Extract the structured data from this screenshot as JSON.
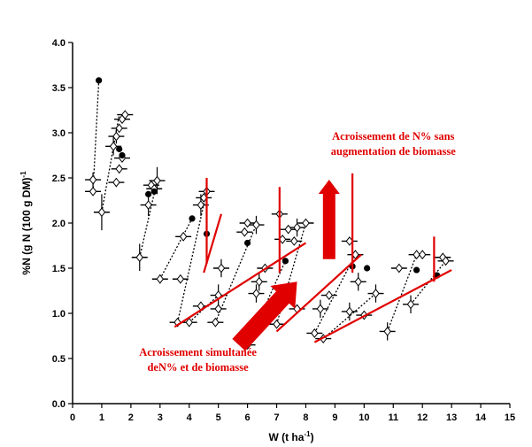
{
  "chart_data": {
    "type": "scatter",
    "title": "",
    "xlabel": "W (t ha",
    "xlabel_sup": "-1",
    "xlabel_end": ")",
    "ylabel": "%N (g N (100 g DM)",
    "ylabel_sup": "-1",
    "xlim": [
      0,
      15
    ],
    "ylim": [
      0.0,
      4.0
    ],
    "x_ticks": [
      0,
      1,
      2,
      3,
      4,
      5,
      6,
      7,
      8,
      9,
      10,
      11,
      12,
      13,
      14,
      15
    ],
    "y_ticks": [
      "0.0",
      "0.5",
      "1.0",
      "1.5",
      "2.0",
      "2.5",
      "3.0",
      "3.5",
      "4.0"
    ],
    "grid": false,
    "series": [
      {
        "marker": "open-diamond",
        "points": [
          {
            "x": 0.7,
            "y": 2.48,
            "yerr": 0.08
          },
          {
            "x": 0.7,
            "y": 2.35,
            "yerr": 0
          },
          {
            "x": 1.0,
            "y": 2.12,
            "yerr": 0.2
          },
          {
            "x": 1.4,
            "y": 2.85,
            "yerr": 0.1
          },
          {
            "x": 1.5,
            "y": 2.96,
            "yerr": 0.08
          },
          {
            "x": 1.6,
            "y": 3.05,
            "yerr": 0
          },
          {
            "x": 1.7,
            "y": 3.15,
            "yerr": 0
          },
          {
            "x": 1.5,
            "y": 2.45,
            "yerr": 0.05
          },
          {
            "x": 1.6,
            "y": 2.6,
            "yerr": 0
          },
          {
            "x": 1.7,
            "y": 2.72,
            "yerr": 0
          },
          {
            "x": 1.8,
            "y": 3.2,
            "yerr": 0
          },
          {
            "x": 2.3,
            "y": 1.62,
            "yerr": 0.15
          },
          {
            "x": 2.6,
            "y": 2.2,
            "yerr": 0.12
          },
          {
            "x": 2.7,
            "y": 2.42,
            "yerr": 0
          },
          {
            "x": 2.8,
            "y": 2.38,
            "yerr": 0
          },
          {
            "x": 2.9,
            "y": 2.47,
            "yerr": 0.15
          },
          {
            "x": 3.0,
            "y": 1.38,
            "yerr": 0.05
          },
          {
            "x": 3.6,
            "y": 0.9,
            "yerr": 0
          },
          {
            "x": 3.7,
            "y": 1.38,
            "yerr": 0
          },
          {
            "x": 3.8,
            "y": 1.85,
            "yerr": 0
          },
          {
            "x": 4.4,
            "y": 2.2,
            "yerr": 0.12
          },
          {
            "x": 4.5,
            "y": 2.28,
            "yerr": 0
          },
          {
            "x": 4.6,
            "y": 2.35,
            "yerr": 0.1
          },
          {
            "x": 4.0,
            "y": 0.9,
            "yerr": 0
          },
          {
            "x": 4.4,
            "y": 1.08,
            "yerr": 0
          },
          {
            "x": 4.9,
            "y": 0.9,
            "yerr": 0
          },
          {
            "x": 5.0,
            "y": 1.2,
            "yerr": 0.12
          },
          {
            "x": 5.0,
            "y": 1.05,
            "yerr": 0
          },
          {
            "x": 5.1,
            "y": 1.5,
            "yerr": 0.1
          },
          {
            "x": 5.9,
            "y": 1.9,
            "yerr": 0
          },
          {
            "x": 6.0,
            "y": 2.0,
            "yerr": 0
          },
          {
            "x": 6.3,
            "y": 1.98,
            "yerr": 0.1
          },
          {
            "x": 6.3,
            "y": 1.22,
            "yerr": 0.1
          },
          {
            "x": 6.4,
            "y": 1.35,
            "yerr": 0.1
          },
          {
            "x": 6.6,
            "y": 1.5,
            "yerr": 0
          },
          {
            "x": 7.1,
            "y": 2.1,
            "yerr": 0.1
          },
          {
            "x": 7.2,
            "y": 1.82,
            "yerr": 0
          },
          {
            "x": 7.4,
            "y": 1.93,
            "yerr": 0
          },
          {
            "x": 7.6,
            "y": 1.8,
            "yerr": 0
          },
          {
            "x": 7.7,
            "y": 1.95,
            "yerr": 0.1
          },
          {
            "x": 8.0,
            "y": 2.0,
            "yerr": 0
          },
          {
            "x": 6.0,
            "y": 0.65,
            "yerr": 0
          },
          {
            "x": 7.0,
            "y": 0.88,
            "yerr": 0
          },
          {
            "x": 7.7,
            "y": 1.05,
            "yerr": 0
          },
          {
            "x": 8.3,
            "y": 0.78,
            "yerr": 0
          },
          {
            "x": 8.5,
            "y": 1.05,
            "yerr": 0.1
          },
          {
            "x": 8.6,
            "y": 0.72,
            "yerr": 0
          },
          {
            "x": 8.8,
            "y": 1.2,
            "yerr": 0
          },
          {
            "x": 9.5,
            "y": 1.8,
            "yerr": 0
          },
          {
            "x": 9.7,
            "y": 1.65,
            "yerr": 0
          },
          {
            "x": 9.5,
            "y": 1.02,
            "yerr": 0.1
          },
          {
            "x": 9.8,
            "y": 1.35,
            "yerr": 0.1
          },
          {
            "x": 10.0,
            "y": 0.98,
            "yerr": 0
          },
          {
            "x": 10.4,
            "y": 1.22,
            "yerr": 0.1
          },
          {
            "x": 10.8,
            "y": 0.8,
            "yerr": 0.1
          },
          {
            "x": 11.2,
            "y": 1.5,
            "yerr": 0
          },
          {
            "x": 11.6,
            "y": 1.1,
            "yerr": 0.1
          },
          {
            "x": 11.8,
            "y": 1.65,
            "yerr": 0
          },
          {
            "x": 12.0,
            "y": 1.65,
            "yerr": 0
          },
          {
            "x": 12.7,
            "y": 1.62,
            "yerr": 0
          },
          {
            "x": 12.8,
            "y": 1.58,
            "yerr": 0
          }
        ]
      },
      {
        "marker": "filled-circle",
        "points": [
          {
            "x": 0.9,
            "y": 3.58
          },
          {
            "x": 1.6,
            "y": 2.82
          },
          {
            "x": 1.7,
            "y": 2.75
          },
          {
            "x": 2.6,
            "y": 2.32
          },
          {
            "x": 2.8,
            "y": 2.35
          },
          {
            "x": 4.1,
            "y": 2.05
          },
          {
            "x": 4.6,
            "y": 1.88
          },
          {
            "x": 6.0,
            "y": 1.78
          },
          {
            "x": 7.3,
            "y": 1.58
          },
          {
            "x": 9.6,
            "y": 1.52
          },
          {
            "x": 10.1,
            "y": 1.5
          },
          {
            "x": 11.8,
            "y": 1.48
          },
          {
            "x": 12.5,
            "y": 1.42
          }
        ]
      }
    ],
    "dotted_links": [
      [
        [
          0.7,
          2.35
        ],
        [
          0.9,
          3.58
        ]
      ],
      [
        [
          1.0,
          2.12
        ],
        [
          1.6,
          3.2
        ]
      ],
      [
        [
          2.3,
          1.62
        ],
        [
          2.9,
          2.47
        ]
      ],
      [
        [
          3.0,
          1.38
        ],
        [
          4.1,
          2.05
        ]
      ],
      [
        [
          3.6,
          0.9
        ],
        [
          4.6,
          2.35
        ]
      ],
      [
        [
          4.0,
          0.9
        ],
        [
          5.0,
          1.2
        ]
      ],
      [
        [
          4.9,
          0.9
        ],
        [
          6.3,
          1.98
        ]
      ],
      [
        [
          6.0,
          0.65
        ],
        [
          7.3,
          1.58
        ]
      ],
      [
        [
          7.0,
          0.88
        ],
        [
          8.0,
          2.0
        ]
      ],
      [
        [
          8.3,
          0.78
        ],
        [
          9.7,
          1.65
        ]
      ],
      [
        [
          8.6,
          0.72
        ],
        [
          10.4,
          1.22
        ]
      ],
      [
        [
          10.8,
          0.8
        ],
        [
          11.8,
          1.65
        ]
      ],
      [
        [
          11.6,
          1.1
        ],
        [
          12.8,
          1.58
        ]
      ]
    ],
    "red_lines": [
      [
        [
          3.5,
          0.85
        ],
        [
          8.0,
          1.78
        ]
      ],
      [
        [
          4.5,
          1.45
        ],
        [
          5.1,
          2.1
        ]
      ],
      [
        [
          7.0,
          0.8
        ],
        [
          9.9,
          1.65
        ]
      ],
      [
        [
          8.3,
          0.68
        ],
        [
          13.0,
          1.48
        ]
      ],
      [
        [
          4.6,
          1.55
        ],
        [
          4.6,
          2.5
        ]
      ],
      [
        [
          7.1,
          1.45
        ],
        [
          7.1,
          2.4
        ]
      ],
      [
        [
          9.6,
          1.45
        ],
        [
          9.6,
          2.55
        ]
      ],
      [
        [
          12.4,
          1.35
        ],
        [
          12.4,
          1.85
        ]
      ]
    ],
    "arrows": [
      {
        "direction": "up",
        "x": 8.8,
        "y_from": 1.6,
        "y_to": 2.48,
        "color": "#e00000"
      },
      {
        "direction": "diagonal",
        "from": [
          5.7,
          0.65
        ],
        "to": [
          7.7,
          1.35
        ],
        "color": "#e00000"
      }
    ],
    "annotations": [
      {
        "lines": [
          "Acroissement de N% sans",
          "augmentation de biomasse"
        ],
        "anchor": [
          11.0,
          2.92
        ]
      },
      {
        "lines": [
          "Acroissement simultanée",
          "deN% et de biomasse"
        ],
        "anchor": [
          4.3,
          0.53
        ]
      }
    ],
    "colors": {
      "accent_red": "#e00000",
      "ink": "#000000"
    }
  }
}
